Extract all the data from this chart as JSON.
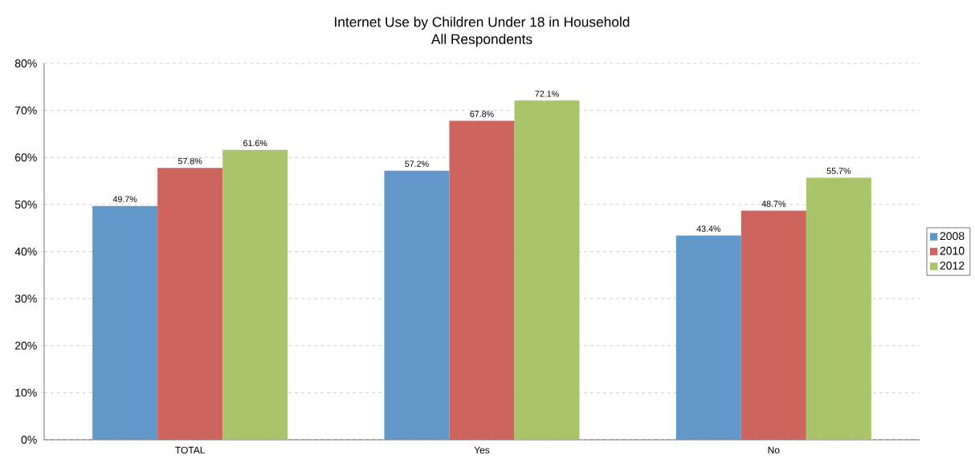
{
  "chart_data": {
    "type": "bar",
    "title": "Internet Use by Children Under 18 in Household",
    "subtitle": "All Respondents",
    "categories": [
      "TOTAL",
      "Yes",
      "No"
    ],
    "series": [
      {
        "name": "2008",
        "color": "#6197c9",
        "values": [
          49.7,
          57.2,
          43.4
        ],
        "value_labels": [
          "49.7%",
          "57.2%",
          "43.4%"
        ]
      },
      {
        "name": "2010",
        "color": "#cd645e",
        "values": [
          57.8,
          67.8,
          48.7
        ],
        "value_labels": [
          "57.8%",
          "67.8%",
          "48.7%"
        ]
      },
      {
        "name": "2012",
        "color": "#a9c46a",
        "values": [
          61.6,
          72.1,
          55.7
        ],
        "value_labels": [
          "61.6%",
          "72.1%",
          "55.7%"
        ]
      }
    ],
    "ylim": [
      0,
      80
    ],
    "yticks": [
      {
        "value": 0,
        "label": "0%"
      },
      {
        "value": 10,
        "label": "10%"
      },
      {
        "value": 20,
        "label": "20%"
      },
      {
        "value": 30,
        "label": "30%"
      },
      {
        "value": 40,
        "label": "40%"
      },
      {
        "value": 50,
        "label": "50%"
      },
      {
        "value": 60,
        "label": "60%"
      },
      {
        "value": 70,
        "label": "70%"
      },
      {
        "value": 80,
        "label": "80%"
      }
    ],
    "grid": "y",
    "legend": "right"
  }
}
